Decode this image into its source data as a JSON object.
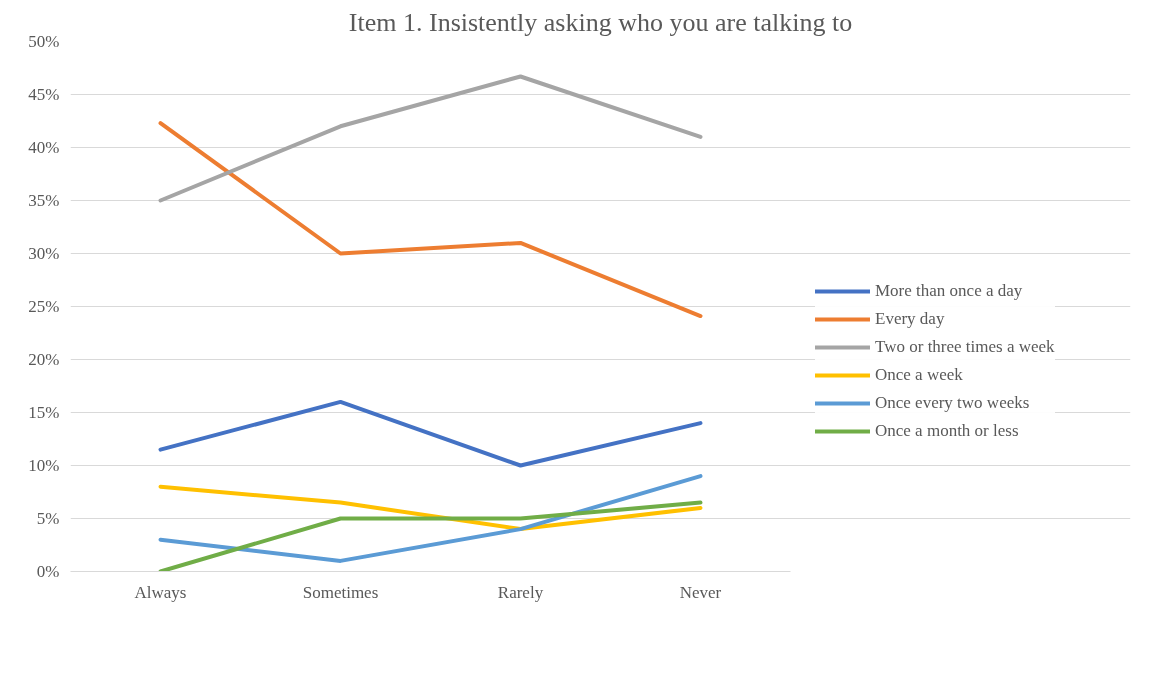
{
  "chart_data": {
    "type": "line",
    "title": "Item 1. Insistently asking who you are talking to",
    "categories": [
      "Always",
      "Sometimes",
      "Rarely",
      "Never"
    ],
    "series": [
      {
        "name": "More than once a day",
        "color": "#4472c4",
        "values": [
          11.5,
          16,
          10,
          14
        ]
      },
      {
        "name": "Every day",
        "color": "#ed7d31",
        "values": [
          42.3,
          30,
          31,
          24.1
        ]
      },
      {
        "name": "Two or three times a week",
        "color": "#a5a5a5",
        "values": [
          35,
          42,
          46.7,
          41
        ]
      },
      {
        "name": "Once a week",
        "color": "#ffc000",
        "values": [
          8,
          6.5,
          4,
          6
        ]
      },
      {
        "name": "Once every two weeks",
        "color": "#5b9bd5",
        "values": [
          3,
          1,
          4,
          9
        ]
      },
      {
        "name": "Once a month or less",
        "color": "#70ad47",
        "values": [
          0,
          5,
          5,
          6.5
        ]
      }
    ],
    "ylim": [
      0,
      50
    ],
    "yticks": [
      {
        "value": 0,
        "label": "0%"
      },
      {
        "value": 5,
        "label": "5%"
      },
      {
        "value": 10,
        "label": "10%"
      },
      {
        "value": 15,
        "label": "15%"
      },
      {
        "value": 20,
        "label": "20%"
      },
      {
        "value": 25,
        "label": "25%"
      },
      {
        "value": 30,
        "label": "30%"
      },
      {
        "value": 35,
        "label": "35%"
      },
      {
        "value": 40,
        "label": "40%"
      },
      {
        "value": 45,
        "label": "45%"
      },
      {
        "value": 50,
        "label": "50%"
      }
    ],
    "grid": "y",
    "legend": "right",
    "marker": "none",
    "line_style": "solid"
  }
}
